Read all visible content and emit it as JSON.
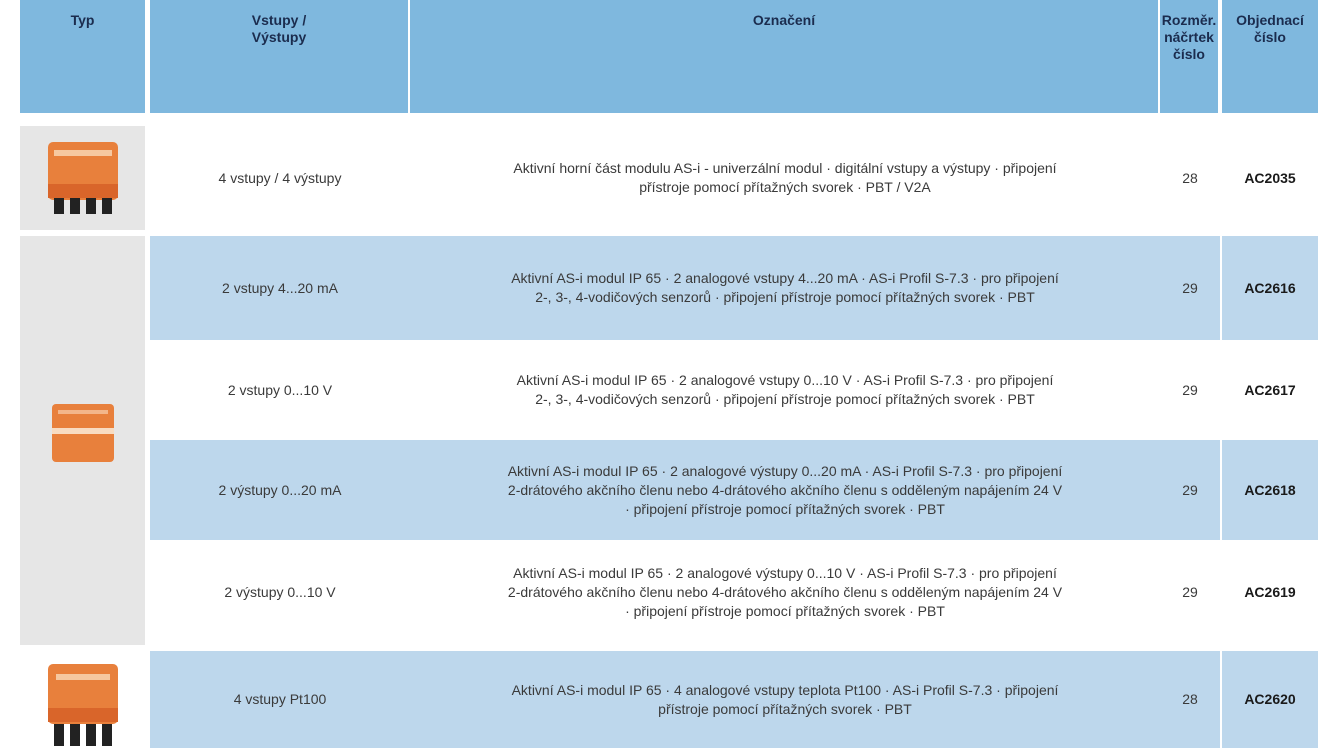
{
  "table": {
    "headers": [
      "Typ",
      "Vstupy /\nVýstupy",
      "Označení",
      "Rozměr.\nnáčrtek\nčíslo",
      "Objednací\nčíslo"
    ],
    "rows": [
      [
        "4 vstupy / 4 výstupy",
        "Aktivní horní část modulu AS-i - univerzální modul · digitální vstupy a výstupy · připojení\npřístroje pomocí přítažných svorek · PBT / V2A",
        28,
        "AC2035"
      ],
      [
        "2 vstupy   4...20 mA",
        "Aktivní AS-i modul IP 65 · 2 analogové vstupy 4...20 mA · AS-i Profil S-7.3 · pro připojení\n2-, 3-, 4-vodičových senzorů · připojení přístroje pomocí přítažných svorek · PBT",
        29,
        "AC2616"
      ],
      [
        "2 vstupy   0...10 V",
        "Aktivní AS-i modul IP 65 · 2 analogové vstupy 0...10 V  · AS-i Profil S-7.3 · pro připojení\n2-, 3-, 4-vodičových senzorů · připojení přístroje pomocí přítažných svorek · PBT",
        29,
        "AC2617"
      ],
      [
        "2 výstupy   0...20 mA",
        "Aktivní AS-i modul IP 65 · 2 analogové výstupy 0...20 mA · AS-i Profil S-7.3 · pro připojení\n2-drátového akčního členu nebo 4-drátového akčního členu s odděleným napájením 24 V\n· připojení přístroje pomocí přítažných svorek · PBT",
        29,
        "AC2618"
      ],
      [
        "2 výstupy   0...10 V",
        "Aktivní AS-i modul IP 65 · 2 analogové výstupy 0...10 V · AS-i Profil S-7.3 · pro připojení\n2-drátového akčního členu nebo 4-drátového akčního členu s odděleným napájením 24 V\n· připojení přístroje pomocí přítažných svorek · PBT",
        29,
        "AC2619"
      ],
      [
        "4 vstupy  Pt100",
        "Aktivní AS-i modul IP 65 · 4 analogové vstupy  teplota Pt100 · AS-i Profil S-7.3 · připojení\npřístroje pomocí přítažných svorek · PBT",
        28,
        "AC2620"
      ]
    ]
  }
}
